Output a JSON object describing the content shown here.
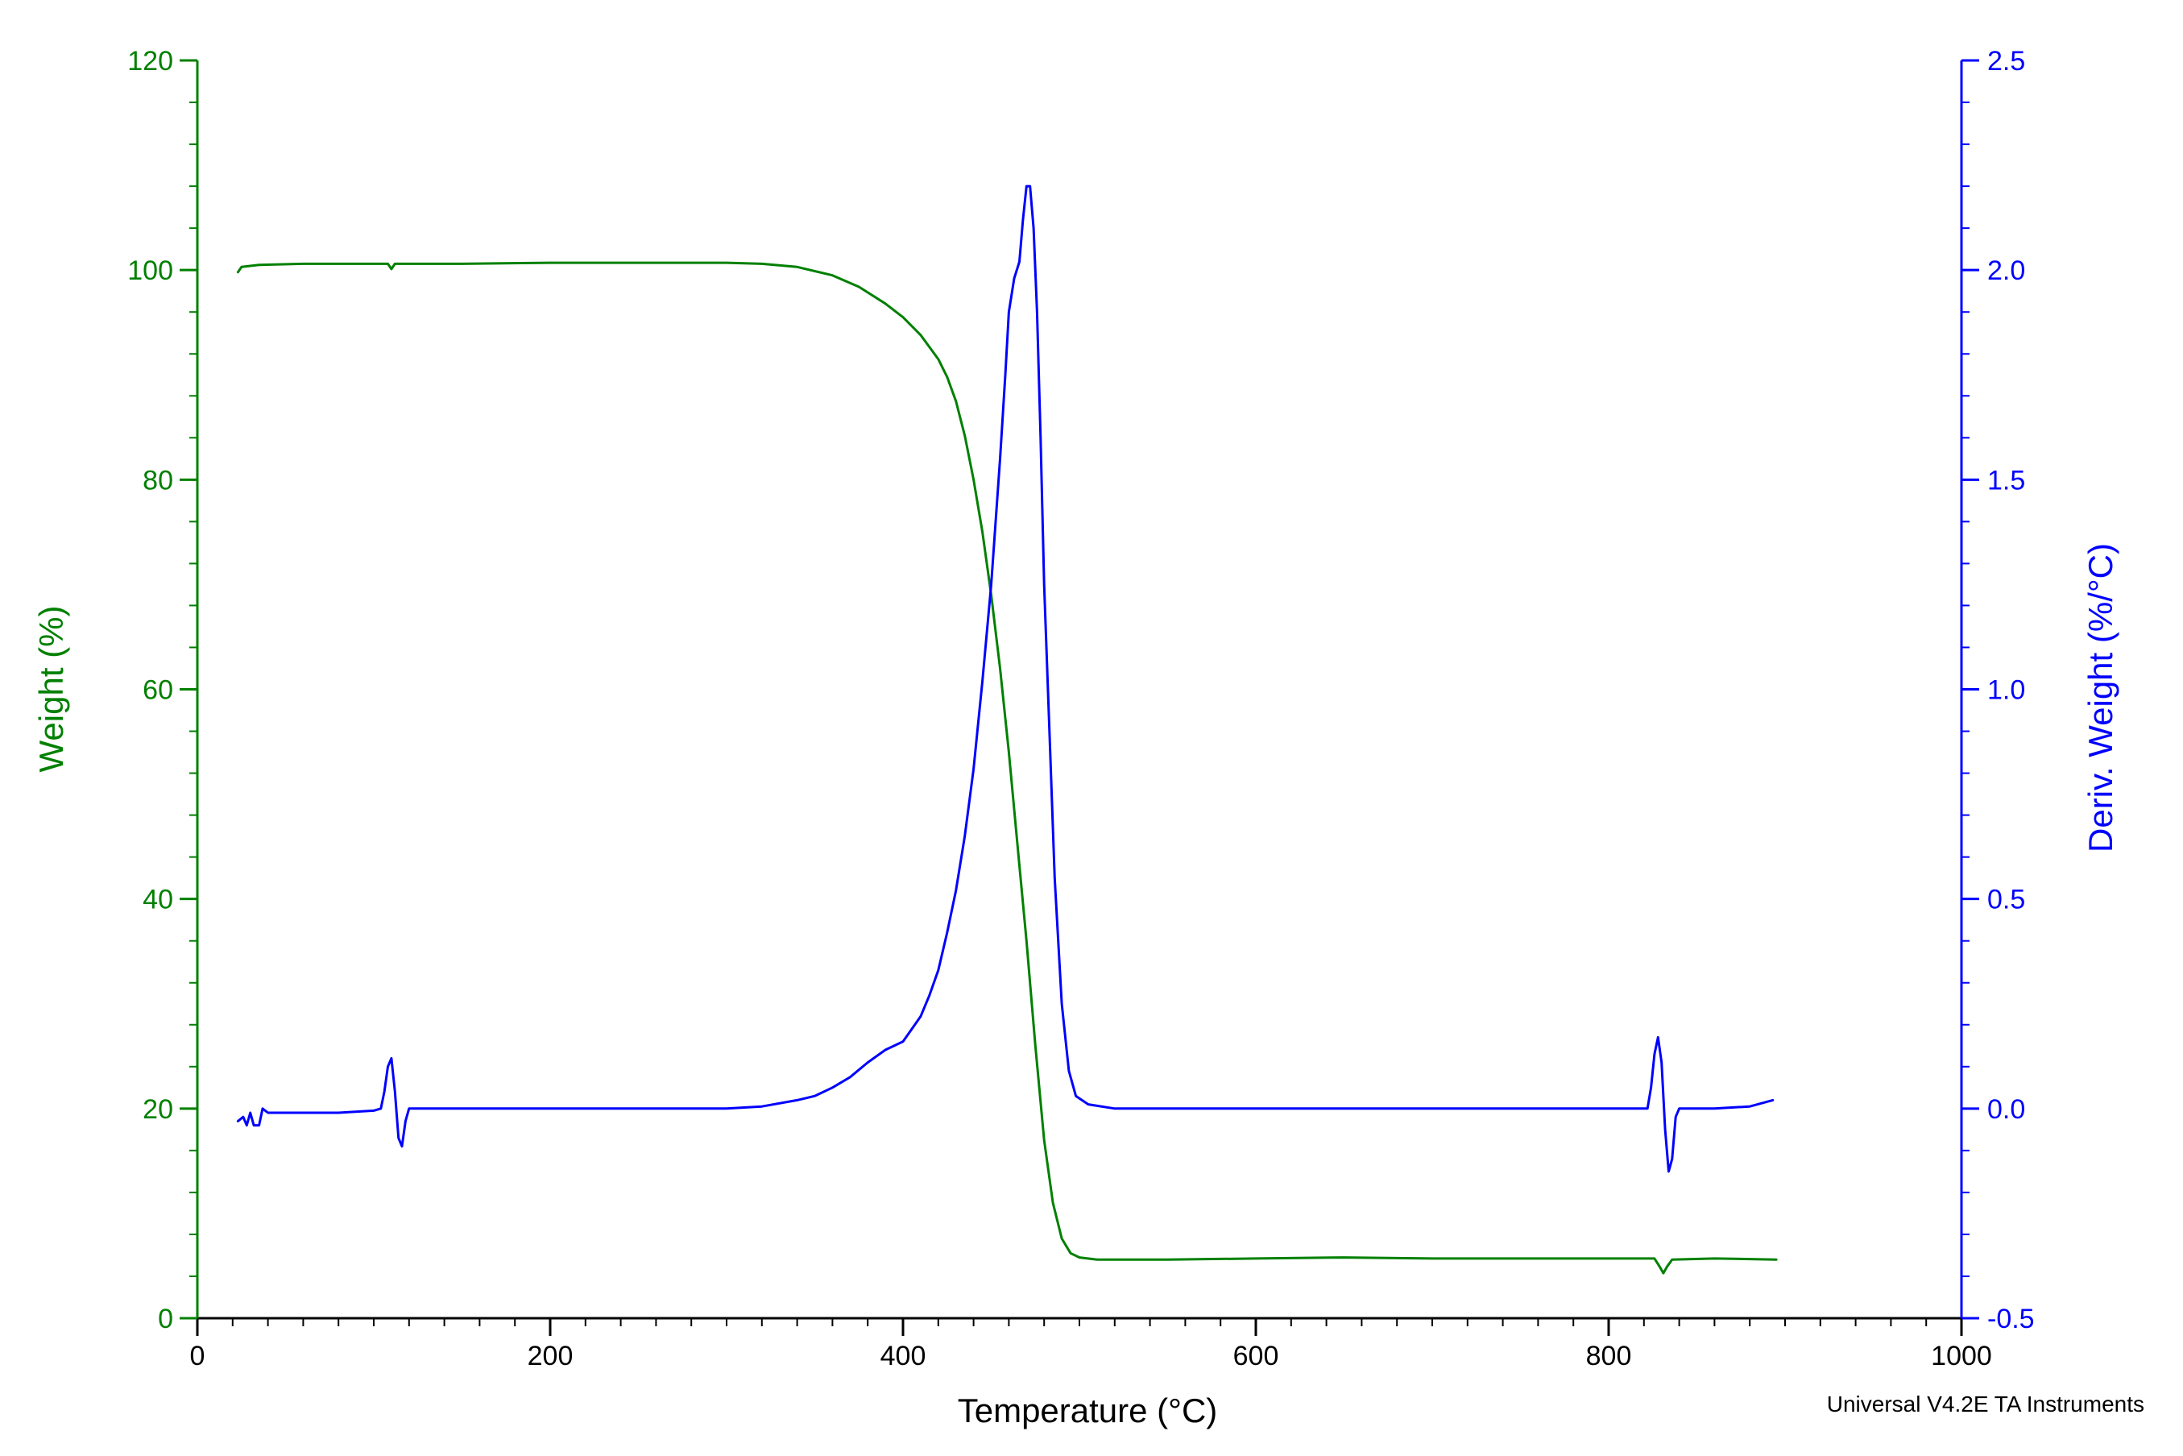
{
  "chart_data": {
    "type": "line",
    "xlabel": "Temperature (°C)",
    "ylabel": "Weight (%)",
    "y2label": "Deriv. Weight (%/°C)",
    "xlim": [
      0,
      1000
    ],
    "ylim": [
      0,
      120
    ],
    "y2lim": [
      -0.5,
      2.5
    ],
    "x_ticks": [
      "0",
      "200",
      "400",
      "600",
      "800",
      "1000"
    ],
    "y_ticks": [
      "0",
      "20",
      "40",
      "60",
      "80",
      "100",
      "120"
    ],
    "y2_ticks": [
      "-0.5",
      "0.0",
      "0.5",
      "1.0",
      "1.5",
      "2.0",
      "2.5"
    ],
    "grid": false,
    "footer": "Universal V4.2E TA Instruments",
    "series": [
      {
        "id": "weight",
        "axis": "left",
        "color": "#008000",
        "points": [
          [
            23,
            99.8
          ],
          [
            25,
            100.3
          ],
          [
            35,
            100.5
          ],
          [
            60,
            100.6
          ],
          [
            100,
            100.6
          ],
          [
            108,
            100.6
          ],
          [
            110,
            100.1
          ],
          [
            112,
            100.6
          ],
          [
            150,
            100.6
          ],
          [
            200,
            100.7
          ],
          [
            250,
            100.7
          ],
          [
            300,
            100.7
          ],
          [
            320,
            100.6
          ],
          [
            340,
            100.3
          ],
          [
            360,
            99.5
          ],
          [
            375,
            98.4
          ],
          [
            390,
            96.8
          ],
          [
            400,
            95.5
          ],
          [
            410,
            93.8
          ],
          [
            420,
            91.5
          ],
          [
            425,
            89.8
          ],
          [
            430,
            87.5
          ],
          [
            435,
            84.2
          ],
          [
            440,
            80.0
          ],
          [
            445,
            75.0
          ],
          [
            450,
            69.0
          ],
          [
            455,
            62.0
          ],
          [
            460,
            54.0
          ],
          [
            465,
            45.0
          ],
          [
            470,
            36.0
          ],
          [
            475,
            26.0
          ],
          [
            480,
            17.0
          ],
          [
            485,
            11.0
          ],
          [
            490,
            7.6
          ],
          [
            495,
            6.2
          ],
          [
            500,
            5.8
          ],
          [
            510,
            5.6
          ],
          [
            550,
            5.6
          ],
          [
            600,
            5.7
          ],
          [
            650,
            5.8
          ],
          [
            700,
            5.7
          ],
          [
            750,
            5.7
          ],
          [
            800,
            5.7
          ],
          [
            826,
            5.7
          ],
          [
            829,
            4.9
          ],
          [
            831,
            4.3
          ],
          [
            833,
            4.9
          ],
          [
            836,
            5.6
          ],
          [
            860,
            5.7
          ],
          [
            895,
            5.6
          ]
        ]
      },
      {
        "id": "deriv",
        "axis": "right",
        "color": "#0000ff",
        "points": [
          [
            23,
            -0.03
          ],
          [
            26,
            -0.02
          ],
          [
            28,
            -0.04
          ],
          [
            30,
            -0.01
          ],
          [
            32,
            -0.04
          ],
          [
            35,
            -0.04
          ],
          [
            37,
            0.0
          ],
          [
            40,
            -0.01
          ],
          [
            60,
            -0.01
          ],
          [
            80,
            -0.01
          ],
          [
            100,
            -0.005
          ],
          [
            104,
            0.0
          ],
          [
            106,
            0.04
          ],
          [
            108,
            0.1
          ],
          [
            110,
            0.12
          ],
          [
            112,
            0.04
          ],
          [
            114,
            -0.07
          ],
          [
            116,
            -0.09
          ],
          [
            118,
            -0.03
          ],
          [
            120,
            0.0
          ],
          [
            150,
            0.0
          ],
          [
            200,
            0.0
          ],
          [
            250,
            0.0
          ],
          [
            300,
            0.0
          ],
          [
            320,
            0.005
          ],
          [
            340,
            0.02
          ],
          [
            350,
            0.03
          ],
          [
            360,
            0.05
          ],
          [
            370,
            0.075
          ],
          [
            380,
            0.11
          ],
          [
            390,
            0.14
          ],
          [
            400,
            0.16
          ],
          [
            405,
            0.19
          ],
          [
            410,
            0.22
          ],
          [
            415,
            0.27
          ],
          [
            420,
            0.33
          ],
          [
            425,
            0.42
          ],
          [
            430,
            0.52
          ],
          [
            435,
            0.65
          ],
          [
            440,
            0.81
          ],
          [
            445,
            1.02
          ],
          [
            450,
            1.25
          ],
          [
            455,
            1.55
          ],
          [
            458,
            1.75
          ],
          [
            460,
            1.9
          ],
          [
            463,
            1.98
          ],
          [
            466,
            2.02
          ],
          [
            468,
            2.12
          ],
          [
            470,
            2.2
          ],
          [
            472,
            2.2
          ],
          [
            474,
            2.1
          ],
          [
            476,
            1.9
          ],
          [
            478,
            1.6
          ],
          [
            480,
            1.25
          ],
          [
            483,
            0.9
          ],
          [
            486,
            0.55
          ],
          [
            490,
            0.25
          ],
          [
            494,
            0.09
          ],
          [
            498,
            0.03
          ],
          [
            505,
            0.01
          ],
          [
            520,
            0.0
          ],
          [
            560,
            0.0
          ],
          [
            600,
            0.0
          ],
          [
            650,
            0.0
          ],
          [
            700,
            0.0
          ],
          [
            750,
            0.0
          ],
          [
            800,
            0.0
          ],
          [
            822,
            0.0
          ],
          [
            824,
            0.05
          ],
          [
            826,
            0.13
          ],
          [
            828,
            0.17
          ],
          [
            830,
            0.11
          ],
          [
            832,
            -0.05
          ],
          [
            834,
            -0.15
          ],
          [
            836,
            -0.12
          ],
          [
            838,
            -0.02
          ],
          [
            840,
            0.0
          ],
          [
            860,
            0.0
          ],
          [
            880,
            0.005
          ],
          [
            893,
            0.02
          ]
        ]
      }
    ]
  }
}
